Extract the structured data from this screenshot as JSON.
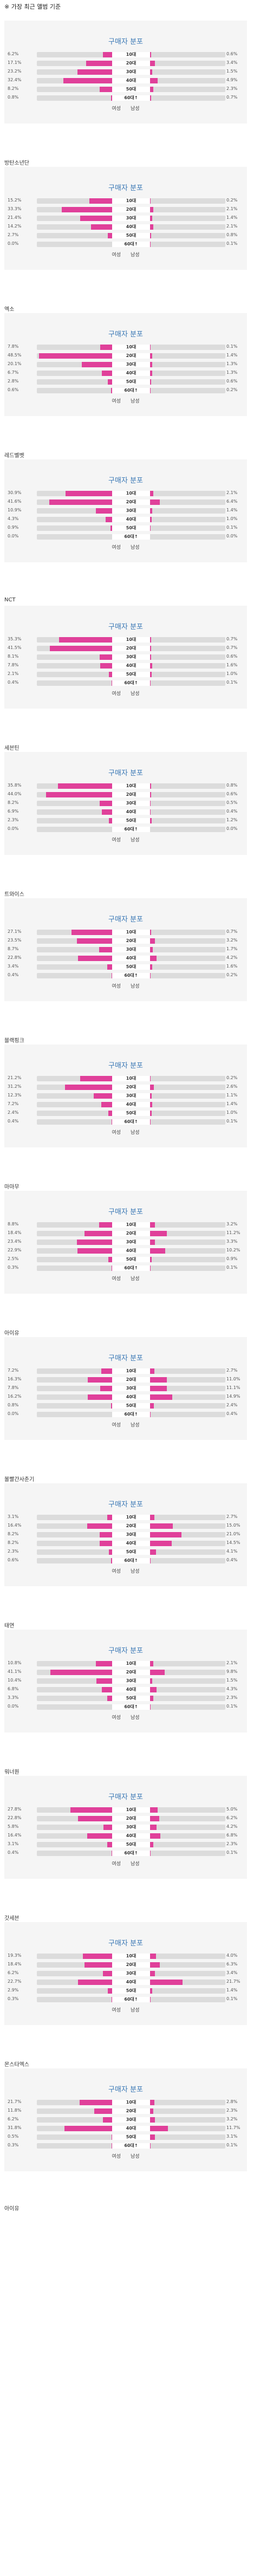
{
  "note": "※ 가장 최근 앨범 기준",
  "card_title": "구매자 분포",
  "legend": [
    "여성",
    "남성"
  ],
  "ages": [
    "10대",
    "20대",
    "30대",
    "40대",
    "50대",
    "60대↑"
  ],
  "colors": {
    "bar": "#e0409a",
    "track": "#dcdcdc",
    "card_bg": "#f5f5f5",
    "title": "#3a78b5"
  },
  "chart_data": [
    {
      "type": "bar",
      "title": "",
      "female": [
        6.2,
        17.1,
        23.2,
        32.4,
        8.2,
        0.8
      ],
      "male": [
        0.6,
        3.4,
        1.5,
        4.9,
        2.3,
        0.7
      ]
    },
    {
      "type": "bar",
      "title": "방탄소년단",
      "female": [
        15.2,
        33.3,
        21.4,
        14.2,
        2.7,
        0.0
      ],
      "male": [
        0.2,
        2.1,
        1.4,
        2.1,
        0.8,
        0.1
      ]
    },
    {
      "type": "bar",
      "title": "엑소",
      "female": [
        7.8,
        48.5,
        20.1,
        6.7,
        2.8,
        0.6
      ],
      "male": [
        0.1,
        1.4,
        1.3,
        1.3,
        0.6,
        0.2
      ]
    },
    {
      "type": "bar",
      "title": "레드벨벳",
      "female": [
        30.9,
        41.6,
        10.9,
        4.3,
        0.9,
        0.0
      ],
      "male": [
        2.1,
        6.4,
        1.4,
        1.0,
        0.1,
        0.0
      ]
    },
    {
      "type": "bar",
      "title": "NCT",
      "female": [
        35.3,
        41.5,
        8.1,
        7.8,
        2.1,
        0.4
      ],
      "male": [
        0.7,
        0.7,
        0.6,
        1.6,
        1.0,
        0.1
      ]
    },
    {
      "type": "bar",
      "title": "세븐틴",
      "female": [
        35.8,
        44.0,
        8.2,
        6.9,
        2.3,
        0.0
      ],
      "male": [
        0.8,
        0.6,
        0.5,
        0.4,
        1.2,
        0.0
      ]
    },
    {
      "type": "bar",
      "title": "트와이스",
      "female": [
        27.1,
        23.5,
        8.7,
        22.8,
        3.4,
        0.4
      ],
      "male": [
        0.7,
        3.2,
        1.7,
        4.2,
        1.6,
        0.2
      ]
    },
    {
      "type": "bar",
      "title": "블랙핑크",
      "female": [
        21.2,
        31.2,
        12.3,
        7.2,
        2.4,
        0.4
      ],
      "male": [
        0.2,
        2.6,
        1.1,
        1.4,
        1.0,
        0.1
      ]
    },
    {
      "type": "bar",
      "title": "마마무",
      "female": [
        8.8,
        18.4,
        23.4,
        22.9,
        2.5,
        0.3
      ],
      "male": [
        3.2,
        11.2,
        3.3,
        10.2,
        0.9,
        0.1
      ]
    },
    {
      "type": "bar",
      "title": "아이유",
      "female": [
        7.2,
        16.3,
        7.8,
        16.2,
        0.8,
        0.0
      ],
      "male": [
        2.7,
        11.0,
        11.1,
        14.9,
        2.4,
        0.4
      ]
    },
    {
      "type": "bar",
      "title": "볼빨간사춘기",
      "female": [
        3.1,
        16.4,
        8.2,
        8.2,
        2.3,
        0.6
      ],
      "male": [
        2.7,
        15.0,
        21.0,
        14.5,
        4.1,
        0.4
      ]
    },
    {
      "type": "bar",
      "title": "태연",
      "female": [
        10.8,
        41.1,
        10.4,
        6.8,
        3.3,
        0.0
      ],
      "male": [
        2.1,
        9.8,
        1.5,
        4.3,
        2.3,
        0.1
      ]
    },
    {
      "type": "bar",
      "title": "워너원",
      "female": [
        27.8,
        22.8,
        5.8,
        16.4,
        3.1,
        0.4
      ],
      "male": [
        5.0,
        6.2,
        4.2,
        6.8,
        2.3,
        0.1
      ]
    },
    {
      "type": "bar",
      "title": "갓세븐",
      "female": [
        19.3,
        18.4,
        6.2,
        22.7,
        2.9,
        0.3
      ],
      "male": [
        4.0,
        6.3,
        3.4,
        21.7,
        1.4,
        0.1
      ]
    },
    {
      "type": "bar",
      "title": "몬스타엑스",
      "female": [
        21.7,
        11.8,
        6.2,
        31.8,
        0.5,
        0.3
      ],
      "male": [
        2.8,
        2.3,
        3.2,
        11.7,
        3.1,
        0.1
      ]
    }
  ],
  "trailing_title": "아이유"
}
